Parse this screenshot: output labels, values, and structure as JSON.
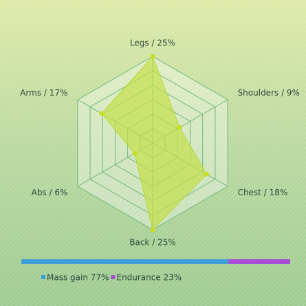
{
  "chart_data": [
    {
      "type": "radar",
      "categories": [
        "Legs / 25%",
        "Shoulders / 9%",
        "Chest / 18%",
        "Back / 25%",
        "Abs / 6%",
        "Arms / 17%"
      ],
      "values": [
        25,
        9,
        18,
        25,
        6,
        17
      ],
      "ylim": [
        0,
        25
      ],
      "color": "#c4e04a"
    },
    {
      "type": "stacked_bar",
      "series": [
        {
          "name": "Mass gain 77%",
          "color": "#3d9fd6",
          "values": [
            77
          ]
        },
        {
          "name": "Endurance 23%",
          "color": "#a64fd6",
          "values": [
            23
          ]
        }
      ],
      "xlim": [
        0,
        100
      ]
    }
  ]
}
